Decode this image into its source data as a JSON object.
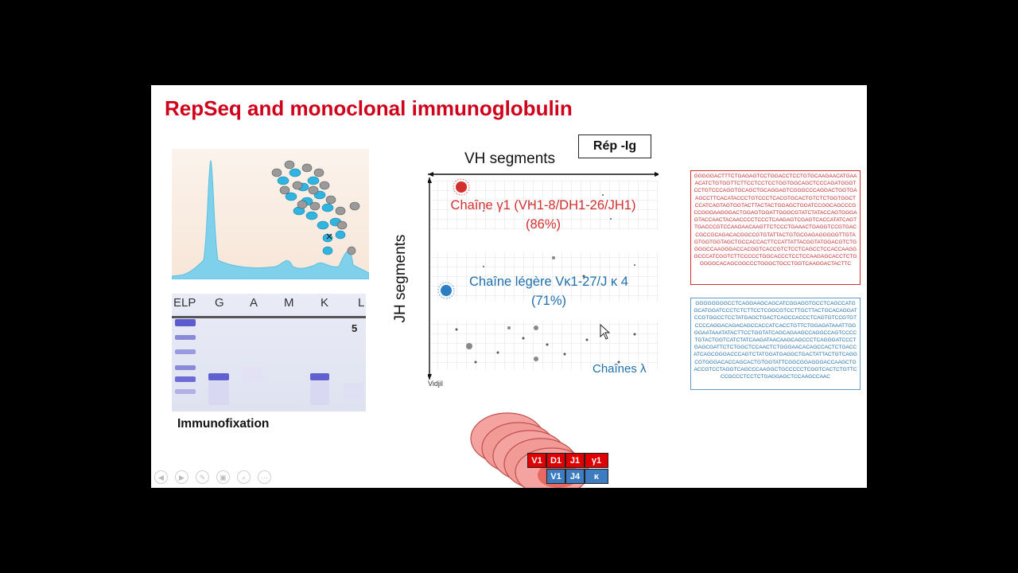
{
  "slide": {
    "title": "RepSeq and monoclonal immunoglobulin",
    "immunofixation": {
      "caption": "Immunofixation",
      "lanes": [
        "ELP",
        "G",
        "A",
        "M",
        "K",
        "L"
      ],
      "mark": "5"
    },
    "vidjil": {
      "x_axis": "VH segments",
      "y_axis": "JH segments",
      "badge": "Rép -Ig",
      "source": "Vidjil",
      "gamma_line1": "Chaîne γ1 (VH1-8/DH1-26/JH1)",
      "gamma_line2": "(86%)",
      "kappa_line1": "Chaîne légère Vκ1-27/J κ 4",
      "kappa_line2": "(71%)",
      "lambda": "Chaînes λ"
    },
    "sequences": {
      "heavy": "GGGGGACTTTCTGAGAGTCCTGGACCTCCTGTGCAAGAACATGAAACATCTGTGGTTCTTCCTCCTCCTGGTGGCAGCTCCCAGATGGGTCCTGTCCCAGGTGCAGCTGCAGGAGTCGGGCCCAGGACTGGTGAAGCCTTCACATACCCTGTCCCTCACGTGCACTGTCTCTGGTGGCTCCATCAGTAGTGGTACTTACTACTGGAGCTGGATCCGGCAGCCCGCCGGGAAGGGACTGGAGTGGATTGGGCGTATCTATACCAGTGGGAGTACCAACTACAACCCCTCCCTCAAGAGTCGAGTCACCATATCAGTTGACCCGTCCAAGAACAAGTTCTCCCTGAAACTGAGGTCCGTGACCGCCGCAGACACGGCCGTGTATTACTGTGCGAGAGGGGGTTGTAGTGGTGGTAGCTGCCACCACTTCCATTATTACGGTATGGACGTCTGGGGCCAAGGGACCACGGTCACCGTCTCCTCAGCCTCCACCAAGGGCCCATCGGTCTTCCCCCTGGCACCCTCCTCCAAGAGCACCTCTGGGGGCACAGCGGCCCTGGGCTGCCTGGTCAAGGACTACTTC",
      "light": "GGGGGGGGCCTCAGGAAGCAGCATCGGAGGTGCCTCAGCCATGGCATGGATCCCTCTCTTCCTCGGCGTCCTTGCTTACTGCACAGGATCCGTGGCCTCCTATGAGCTGACTCAGCCACCCTCAGTGTCCGTGTCCCCAGGACAGACAGCCACCATCACCTGTTCTGGAGATAAATTGGGGAATAAATATACTTCCTGGTATCAGCAGAAGCCAGGCCAGTCCCCTGTACTGGTCATCTATCAAGATAACAAGCAGCCCTCAGGGATCCCTGAGCGATTCTCTGGCTCCAACTCTGGGAACACAGCCACTCTGACCATCAGCGGGACCCAGTCTATGGATGAGGCTGACTATTACTGTCAGGCGTGGGACACCAGCACTGTGGTATTCGGCGGAGGGACCAAGCTGACCGTCCTAGGTCAGCCCAAGGCTGCCCCCTCGGTCACTCTGTTCCCGCCCTCCTCTGAGGAGCTCCAAGCCAAC"
    },
    "locus": {
      "heavy": [
        "V1",
        "D1",
        "J1",
        "γ1"
      ],
      "light": [
        "V1",
        "J4",
        "κ"
      ]
    },
    "colors": {
      "title": "#d0021b",
      "gamma": "#d32f2f",
      "kappa": "#1f6fad"
    },
    "controls": [
      "previous-icon",
      "next-icon",
      "pen-icon",
      "slides-icon",
      "zoom-icon",
      "more-icon"
    ]
  }
}
